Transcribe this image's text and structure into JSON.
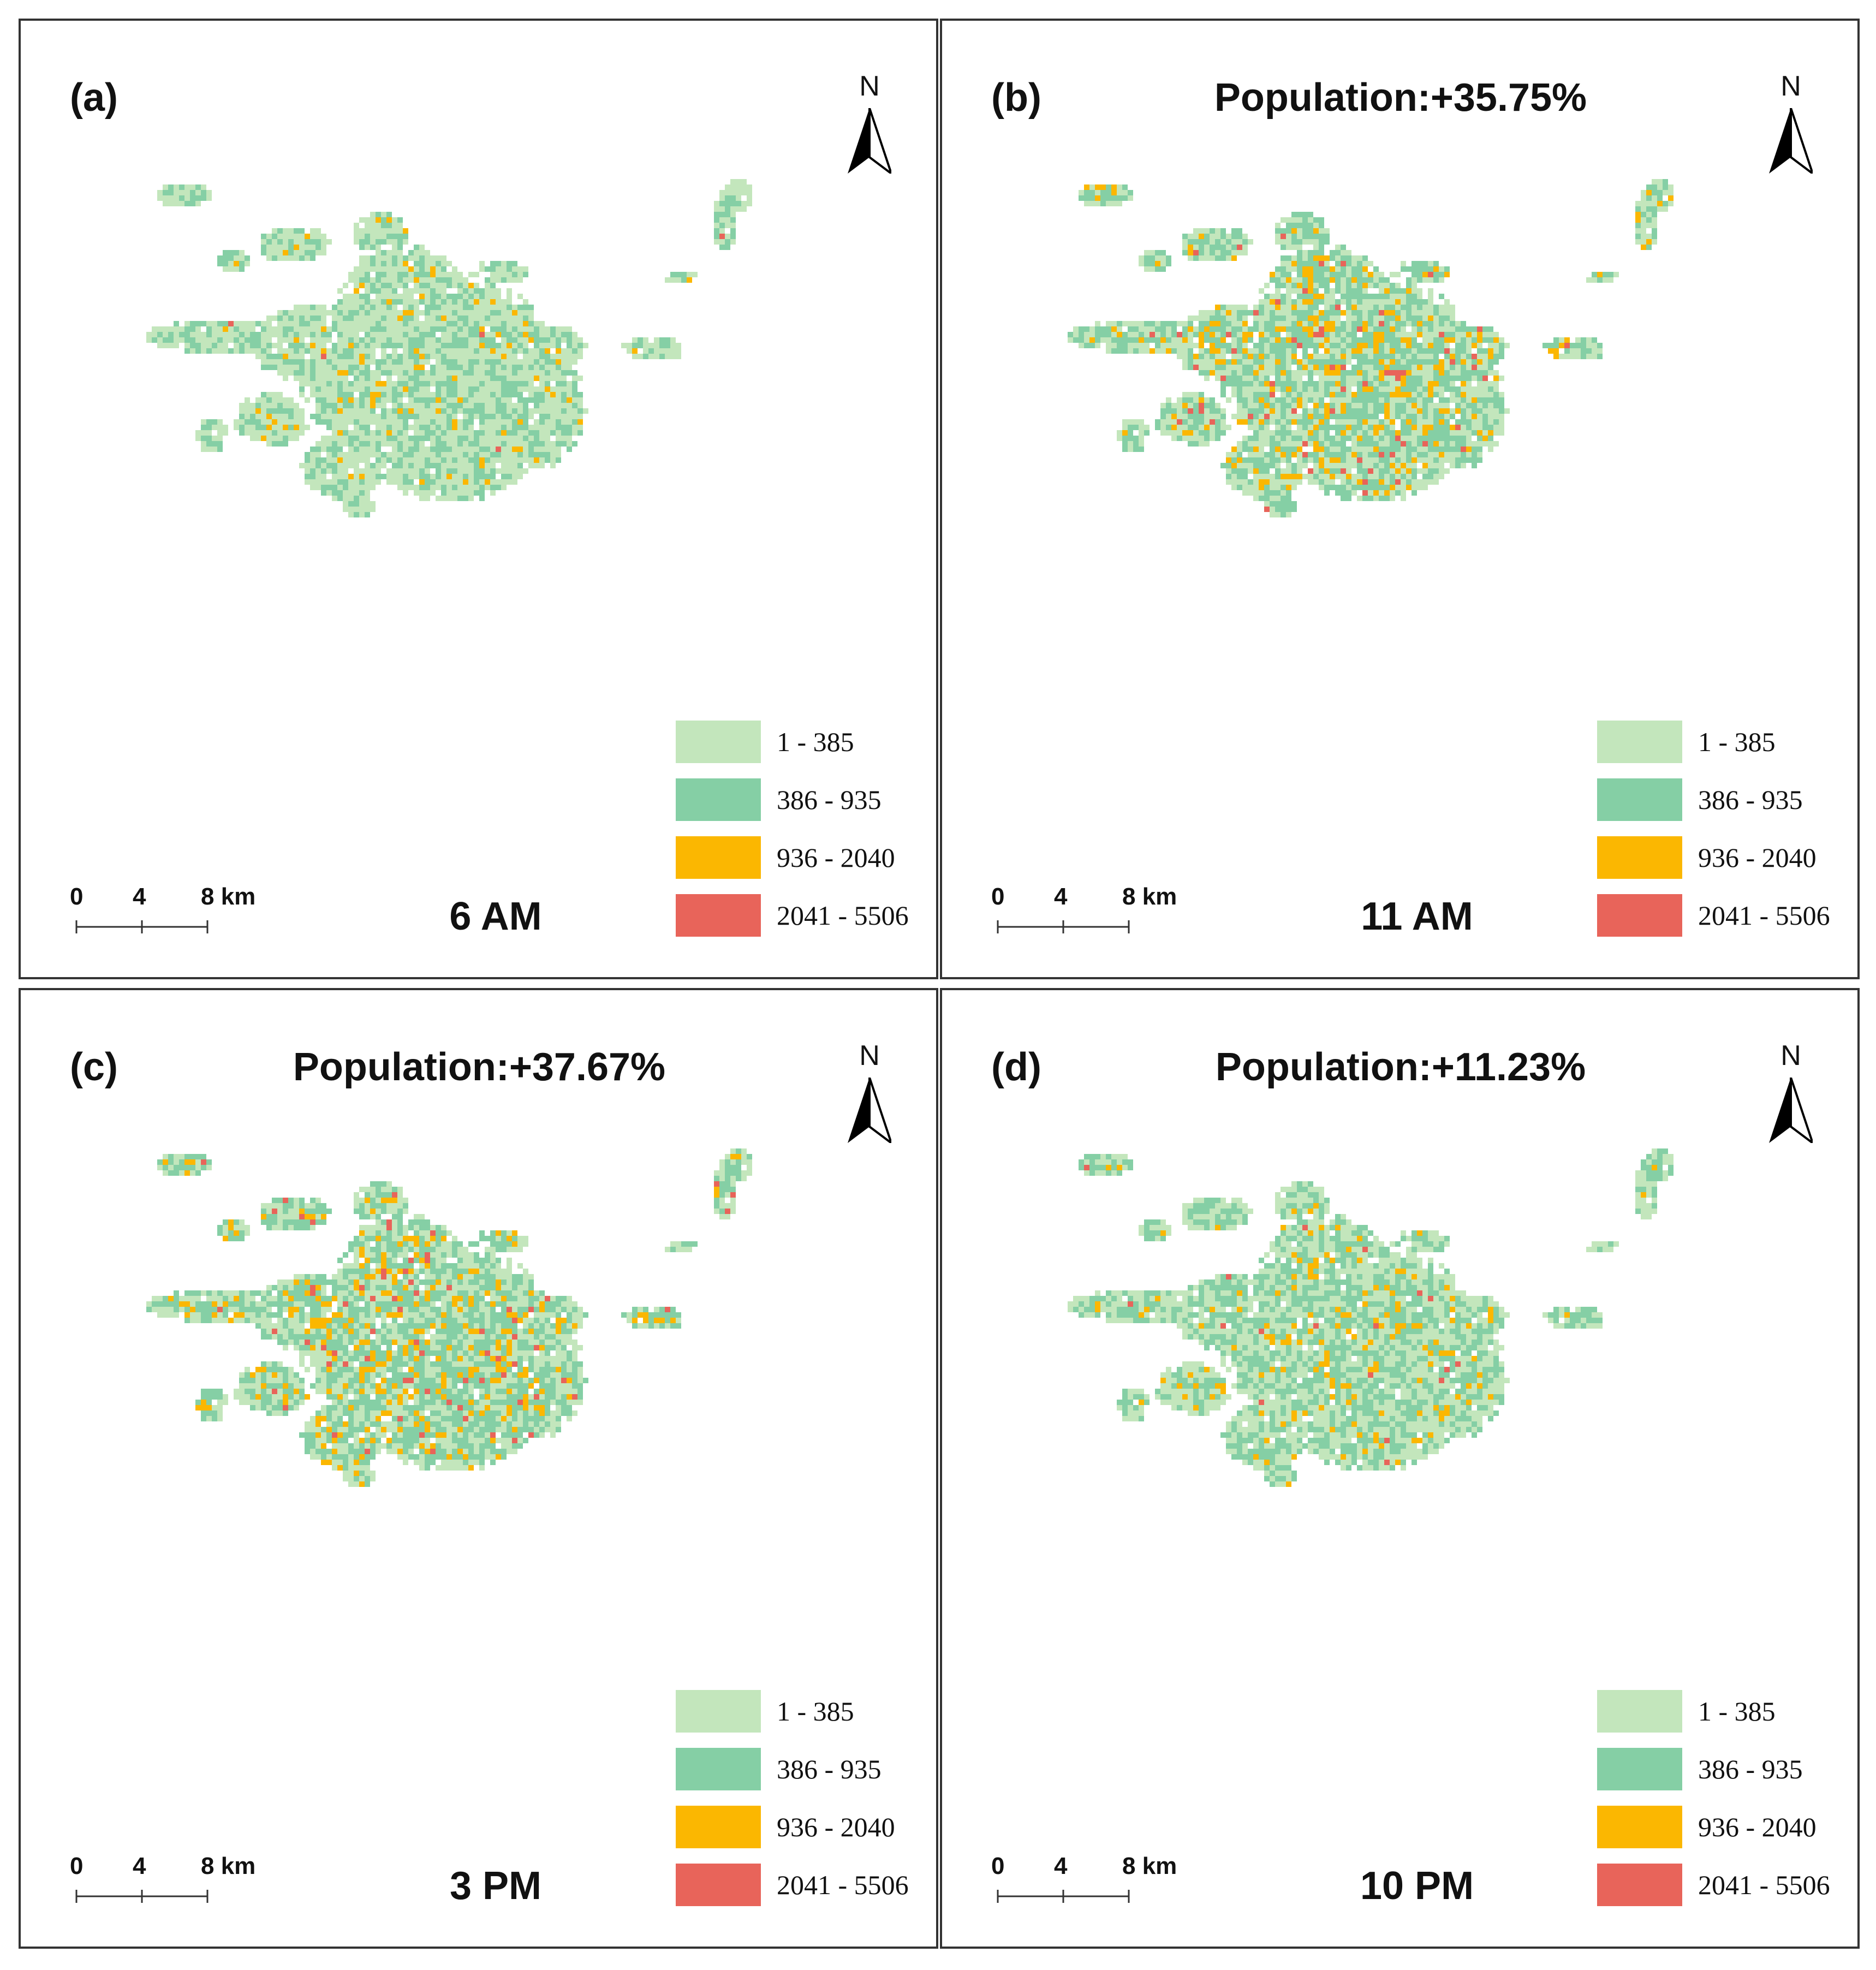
{
  "legend": {
    "classes": [
      {
        "label": "1 - 385",
        "color": "#c3e6bc"
      },
      {
        "label": "386 - 935",
        "color": "#85cfa5"
      },
      {
        "label": "936 - 2040",
        "color": "#fbb701"
      },
      {
        "label": "2041 - 5506",
        "color": "#e8645a"
      }
    ]
  },
  "scale_bar": {
    "ticks": [
      "0",
      "4",
      "8 km"
    ]
  },
  "north_arrow": {
    "label": "N",
    "icon": "north-arrow-icon"
  },
  "panels": [
    {
      "id": "a",
      "label": "(a)",
      "title": "",
      "time": "6 AM",
      "density": {
        "mid": 0.38,
        "high": 0.06,
        "top": 0.004
      }
    },
    {
      "id": "b",
      "label": "(b)",
      "title": "Population:+35.75%",
      "time": "11 AM",
      "density": {
        "mid": 0.48,
        "high": 0.16,
        "top": 0.035
      }
    },
    {
      "id": "c",
      "label": "(c)",
      "title": "Population:+37.67%",
      "time": "3 PM",
      "density": {
        "mid": 0.48,
        "high": 0.17,
        "top": 0.04
      }
    },
    {
      "id": "d",
      "label": "(d)",
      "title": "Population:+11.23%",
      "time": "10 PM",
      "density": {
        "mid": 0.45,
        "high": 0.09,
        "top": 0.008
      }
    }
  ]
}
